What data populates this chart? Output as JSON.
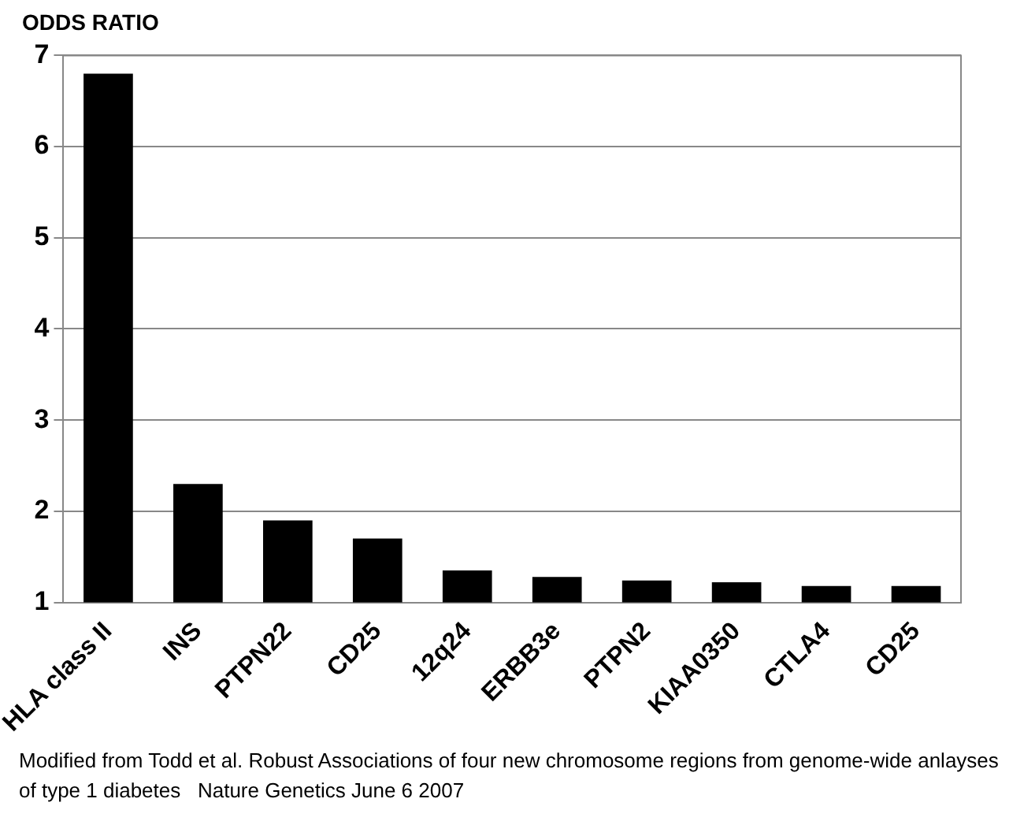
{
  "chart_data": {
    "type": "bar",
    "ylabel": "ODDS RATIO",
    "categories": [
      "HLA class II",
      "INS",
      "PTPN22",
      "CD25",
      "12q24",
      "ERBB3e",
      "PTPN2",
      "KIAA0350",
      "CTLA4",
      "CD25"
    ],
    "values": [
      6.8,
      2.3,
      1.9,
      1.7,
      1.35,
      1.28,
      1.24,
      1.22,
      1.18,
      1.18
    ],
    "color": "#000000",
    "ylim": [
      1,
      7
    ],
    "yticks": [
      1,
      2,
      3,
      4,
      5,
      6,
      7
    ],
    "grid": "y",
    "annotations": [
      "Modified from Todd et al. Robust Associations of four new chromosome regions from genome-wide anlayses of type 1 diabetes   Nature Genetics June 6 2007"
    ]
  }
}
